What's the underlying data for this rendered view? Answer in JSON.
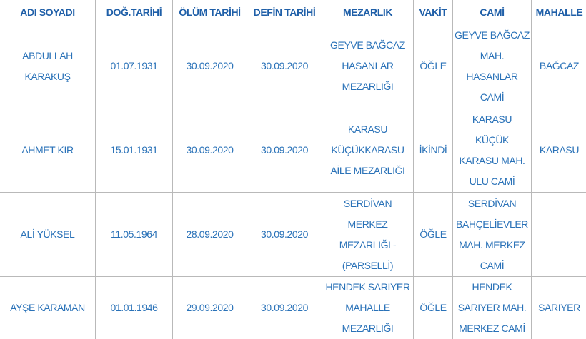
{
  "headers": [
    "ADI SOYADI",
    "DOĞ.TARİHİ",
    "ÖLÜM TARİHİ",
    "DEFİN TARİHİ",
    "MEZARLIK",
    "VAKİT",
    "CAMİ",
    "MAHALLE"
  ],
  "rows": [
    [
      "ABDULLAH KARAKUŞ",
      "01.07.1931",
      "30.09.2020",
      "30.09.2020",
      "GEYVE BAĞCAZ HASANLAR MEZARLIĞI",
      "ÖĞLE",
      "GEYVE BAĞCAZ MAH. HASANLAR CAMİ",
      "BAĞCAZ"
    ],
    [
      "AHMET KIR",
      "15.01.1931",
      "30.09.2020",
      "30.09.2020",
      "KARASU KÜÇÜKKARASU AİLE MEZARLIĞI",
      "İKİNDİ",
      "KARASU KÜÇÜK KARASU MAH. ULU CAMİ",
      "KARASU"
    ],
    [
      "ALİ YÜKSEL",
      "11.05.1964",
      "28.09.2020",
      "30.09.2020",
      "SERDİVAN MERKEZ MEZARLIĞI - (PARSELLİ)",
      "ÖĞLE",
      "SERDİVAN BAHÇELİEVLER MAH. MERKEZ CAMİ",
      ""
    ],
    [
      "AYŞE KARAMAN",
      "01.01.1946",
      "29.09.2020",
      "30.09.2020",
      "HENDEK SARIYER MAHALLE MEZARLIĞI",
      "ÖĞLE",
      "HENDEK SARIYER MAH. MERKEZ CAMİ",
      "SARIYER"
    ]
  ]
}
